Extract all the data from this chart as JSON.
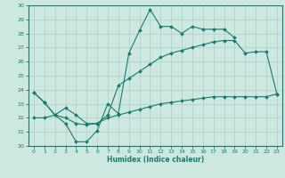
{
  "xlabel": "Humidex (Indice chaleur)",
  "bg_color": "#cce8e0",
  "grid_color": "#aacfc8",
  "line_color": "#1a7a6e",
  "xlim": [
    -0.5,
    23.5
  ],
  "ylim": [
    20,
    30
  ],
  "yticks": [
    20,
    21,
    22,
    23,
    24,
    25,
    26,
    27,
    28,
    29,
    30
  ],
  "xticks": [
    0,
    1,
    2,
    3,
    4,
    5,
    6,
    7,
    8,
    9,
    10,
    11,
    12,
    13,
    14,
    15,
    16,
    17,
    18,
    19,
    20,
    21,
    22,
    23
  ],
  "line1_x": [
    0,
    1,
    2,
    3,
    4,
    5,
    6,
    7,
    8,
    9,
    10,
    11,
    12,
    13,
    14,
    15,
    16,
    17,
    18,
    19
  ],
  "line1_y": [
    23.8,
    23.1,
    22.2,
    21.6,
    20.3,
    20.3,
    21.1,
    23.0,
    22.3,
    26.6,
    28.2,
    29.7,
    28.5,
    28.5,
    28.0,
    28.5,
    28.3,
    28.3,
    28.3,
    27.7
  ],
  "line2_x": [
    0,
    1,
    2,
    3,
    4,
    5,
    6,
    7,
    8,
    9,
    10,
    11,
    12,
    13,
    14,
    15,
    16,
    17,
    18,
    19,
    20,
    21,
    22,
    23
  ],
  "line2_y": [
    23.8,
    23.1,
    22.2,
    22.7,
    22.2,
    21.6,
    21.6,
    22.2,
    24.3,
    24.8,
    25.3,
    25.8,
    26.3,
    26.6,
    26.8,
    27.0,
    27.2,
    27.4,
    27.5,
    27.5,
    26.6,
    26.7,
    26.7,
    23.7
  ],
  "line3_x": [
    0,
    1,
    2,
    3,
    4,
    5,
    6,
    7,
    8,
    9,
    10,
    11,
    12,
    13,
    14,
    15,
    16,
    17,
    18,
    19,
    20,
    21,
    22,
    23
  ],
  "line3_y": [
    22.0,
    22.0,
    22.2,
    22.0,
    21.6,
    21.5,
    21.6,
    22.0,
    22.2,
    22.4,
    22.6,
    22.8,
    23.0,
    23.1,
    23.2,
    23.3,
    23.4,
    23.5,
    23.5,
    23.5,
    23.5,
    23.5,
    23.5,
    23.7
  ]
}
